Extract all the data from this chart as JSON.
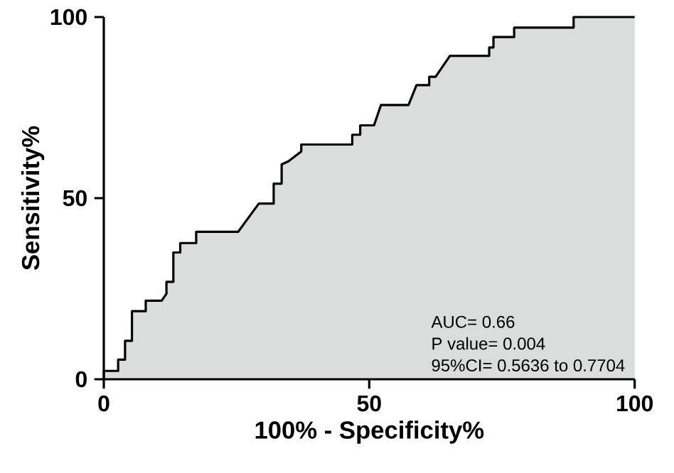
{
  "chart_data": {
    "type": "area",
    "x": [
      0,
      0,
      2.7,
      2.7,
      4.0,
      4.0,
      5.3,
      5.3,
      7.9,
      7.9,
      10.9,
      11.8,
      11.8,
      13.1,
      13.1,
      14.4,
      14.4,
      17.4,
      17.4,
      25.3,
      26.6,
      29.2,
      32.0,
      32.0,
      33.5,
      33.5,
      34.8,
      37.2,
      37.2,
      46.8,
      46.8,
      48.3,
      48.3,
      50.9,
      52.2,
      57.4,
      58.9,
      61.3,
      61.3,
      62.5,
      65.2,
      72.6,
      72.6,
      73.4,
      73.4,
      77.3,
      77.3,
      88.5,
      88.5,
      100
    ],
    "values": [
      0,
      2.3,
      2.3,
      5.4,
      5.4,
      10.6,
      10.6,
      18.8,
      18.8,
      21.7,
      21.7,
      23.6,
      26.9,
      26.9,
      35,
      35,
      37.6,
      37.6,
      40.7,
      40.7,
      43.3,
      48.5,
      48.5,
      54,
      54,
      59.3,
      60.2,
      62.9,
      64.8,
      64.8,
      67.5,
      67.5,
      70.1,
      70.1,
      75.7,
      75.7,
      81.2,
      81.2,
      83.5,
      83.5,
      89.3,
      89.3,
      91.6,
      91.6,
      94.5,
      94.5,
      97.1,
      97.1,
      100,
      100
    ],
    "color": "#d9dedd",
    "xlabel": "100% - Specificity%",
    "ylabel": "Sensitivity%",
    "xlim": [
      0,
      100
    ],
    "ylim": [
      0,
      100
    ],
    "xticks": [
      0,
      50,
      100
    ],
    "yticks": [
      0,
      50,
      100
    ],
    "annotations": [
      "AUC= 0.66",
      "P value= 0.004",
      "95%CI= 0.5636 to 0.7704"
    ]
  }
}
